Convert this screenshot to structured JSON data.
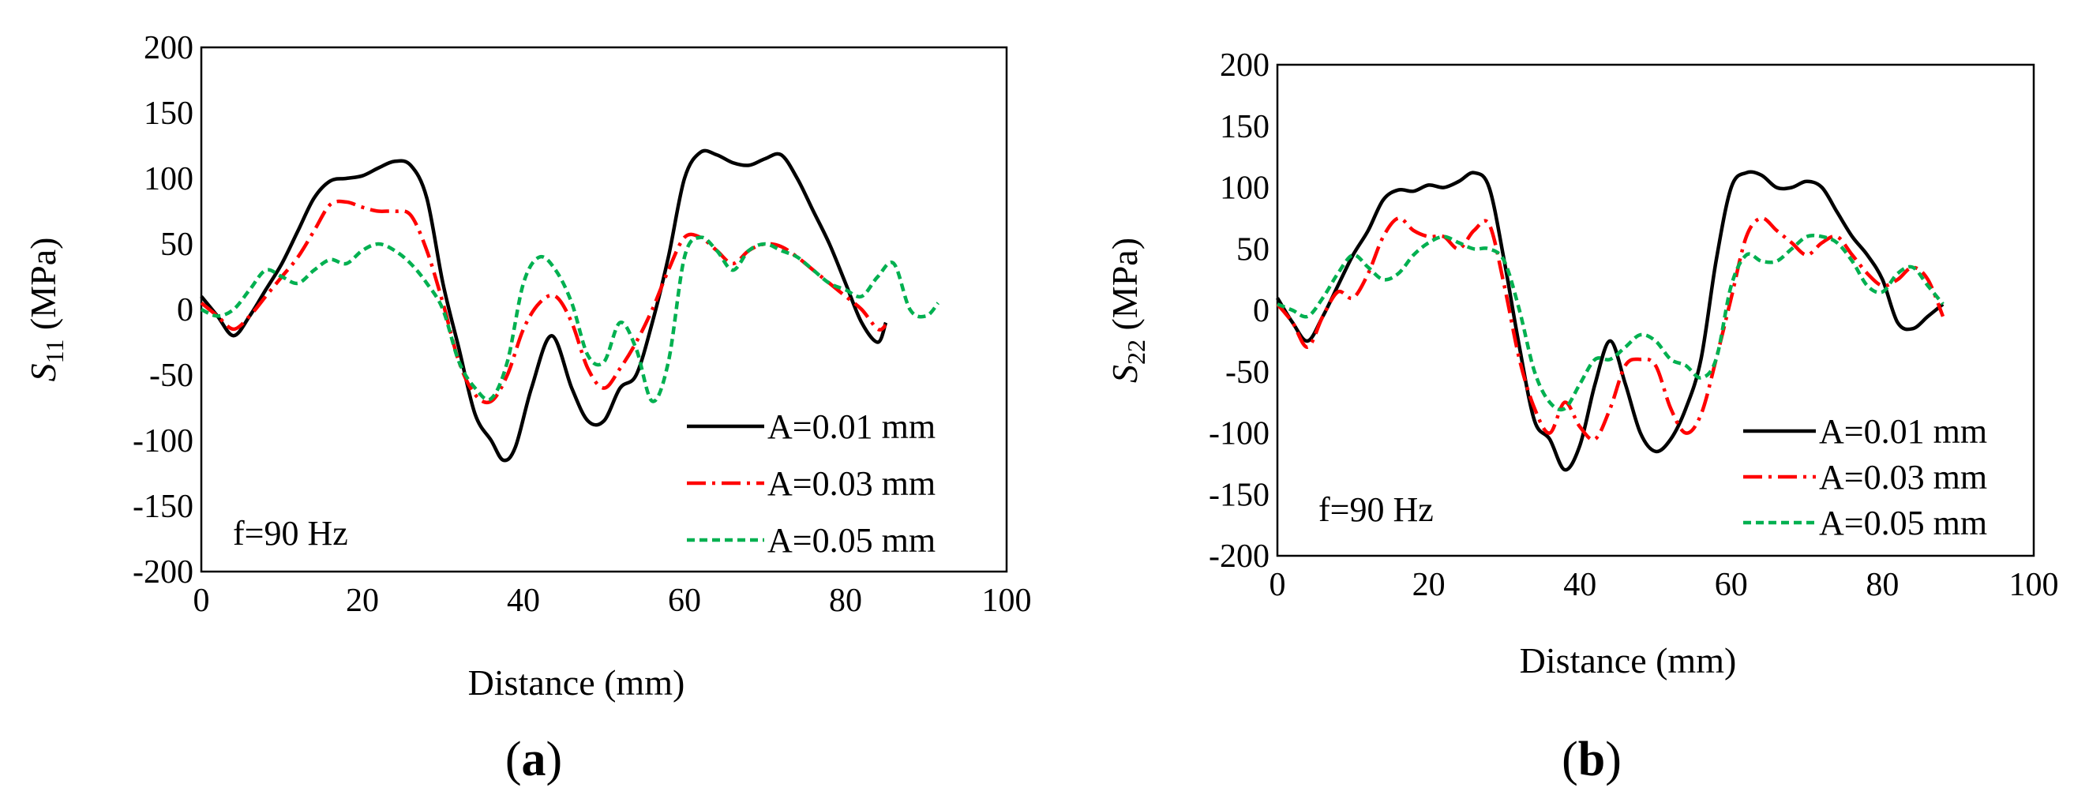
{
  "chart_data": [
    {
      "type": "line",
      "panel_label": {
        "open": "(",
        "letter": "a",
        "close": ")"
      },
      "title": "",
      "xlabel": "Distance (mm)",
      "ylabel": {
        "base": "S",
        "sub": "11",
        "unit": " (MPa)"
      },
      "xlim": [
        0,
        100
      ],
      "ylim": [
        -200,
        200
      ],
      "xticks": [
        0,
        20,
        40,
        60,
        80,
        100
      ],
      "xtick_labels": [
        "0",
        "20",
        "40",
        "60",
        "80",
        "100"
      ],
      "yticks": [
        200,
        150,
        100,
        50,
        0,
        -50,
        -100,
        -150,
        -200
      ],
      "ytick_labels": [
        "200",
        "150",
        "100",
        "50",
        "0",
        "-50",
        "-100",
        "-150",
        "-200"
      ],
      "grid": false,
      "annotation": "f=90 Hz",
      "legend_position": "bottom-right",
      "series": [
        {
          "name": "A=0.01 mm",
          "color": "#000000",
          "dash": "solid",
          "x": [
            0,
            2,
            4,
            6,
            8,
            10,
            12,
            14,
            16,
            18,
            20,
            22,
            24,
            26,
            28,
            30,
            32,
            34,
            36,
            37.5,
            39,
            41,
            43.5,
            46,
            48,
            50,
            52,
            54,
            56,
            58,
            60,
            62,
            64,
            66,
            68,
            70,
            72,
            74,
            76,
            78,
            80,
            82,
            84,
            85
          ],
          "y": [
            10,
            -5,
            -20,
            -5,
            15,
            35,
            60,
            85,
            98,
            100,
            102,
            108,
            113,
            110,
            85,
            20,
            -30,
            -80,
            -100,
            -115,
            -105,
            -60,
            -20,
            -60,
            -85,
            -85,
            -60,
            -50,
            -10,
            40,
            100,
            120,
            118,
            112,
            110,
            115,
            118,
            100,
            75,
            50,
            20,
            -10,
            -25,
            -10
          ]
        },
        {
          "name": "A=0.03 mm",
          "color": "#ff0000",
          "dash": "dashdot",
          "x": [
            0,
            2,
            4,
            6,
            8,
            10,
            12,
            14,
            16,
            18,
            20,
            22,
            24,
            26,
            28,
            30,
            32,
            34,
            36,
            38,
            40,
            42,
            44,
            46,
            48,
            50,
            52,
            54,
            56,
            58,
            60,
            62,
            64,
            66,
            68,
            70,
            72,
            74,
            76,
            78,
            80,
            82,
            84,
            85
          ],
          "y": [
            5,
            -5,
            -15,
            -5,
            10,
            25,
            40,
            60,
            80,
            82,
            78,
            75,
            75,
            72,
            45,
            5,
            -40,
            -65,
            -70,
            -50,
            -15,
            5,
            10,
            -10,
            -45,
            -60,
            -45,
            -25,
            0,
            30,
            55,
            55,
            45,
            35,
            45,
            50,
            48,
            40,
            30,
            20,
            10,
            0,
            -15,
            -12
          ]
        },
        {
          "name": "A=0.05 mm",
          "color": "#00b050",
          "dash": "dashed",
          "x": [
            0,
            2,
            4,
            6,
            8,
            10,
            12,
            14,
            16,
            18,
            20,
            22,
            24,
            26,
            28,
            30,
            32,
            34,
            36,
            38,
            40,
            42,
            44,
            46,
            48,
            50,
            52,
            54,
            56,
            58,
            60,
            62,
            64,
            66,
            68,
            70,
            72,
            74,
            76,
            78,
            80,
            82,
            84,
            86,
            88,
            90,
            91.5
          ],
          "y": [
            0,
            -5,
            0,
            15,
            30,
            25,
            20,
            30,
            38,
            35,
            45,
            50,
            45,
            35,
            20,
            0,
            -40,
            -60,
            -68,
            -40,
            20,
            40,
            30,
            5,
            -35,
            -40,
            -10,
            -30,
            -70,
            -40,
            40,
            55,
            45,
            30,
            45,
            50,
            45,
            40,
            30,
            20,
            15,
            10,
            25,
            35,
            0,
            -5,
            5
          ]
        }
      ]
    },
    {
      "type": "line",
      "panel_label": {
        "open": "(",
        "letter": "b",
        "close": ")"
      },
      "title": "",
      "xlabel": "Distance (mm)",
      "ylabel": {
        "base": "S",
        "sub": "22",
        "unit": " (MPa)"
      },
      "xlim": [
        0,
        100
      ],
      "ylim": [
        -200,
        200
      ],
      "xticks": [
        0,
        20,
        40,
        60,
        80,
        100
      ],
      "xtick_labels": [
        "0",
        "20",
        "40",
        "60",
        "80",
        "100"
      ],
      "yticks": [
        200,
        150,
        100,
        50,
        0,
        -50,
        -100,
        -150,
        -200
      ],
      "ytick_labels": [
        "200",
        "150",
        "100",
        "50",
        "0",
        "-50",
        "-100",
        "-150",
        "-200"
      ],
      "grid": false,
      "annotation": "f=90 Hz",
      "legend_position": "bottom-right",
      "series": [
        {
          "name": "A=0.01 mm",
          "color": "#000000",
          "dash": "solid",
          "x": [
            0,
            2,
            4,
            6,
            8,
            10,
            12,
            14,
            16,
            18,
            20,
            22,
            24,
            26,
            28,
            30,
            32,
            34,
            36,
            38,
            40,
            42,
            44,
            46,
            48,
            50,
            52,
            54,
            56,
            58,
            60,
            62,
            64,
            66,
            68,
            70,
            72,
            74,
            76,
            78,
            80,
            82,
            84,
            86,
            88
          ],
          "y": [
            10,
            -10,
            -25,
            -5,
            20,
            45,
            65,
            90,
            98,
            97,
            102,
            100,
            105,
            112,
            100,
            40,
            -30,
            -90,
            -105,
            -130,
            -110,
            -60,
            -25,
            -60,
            -100,
            -115,
            -105,
            -80,
            -40,
            40,
            100,
            112,
            110,
            100,
            100,
            105,
            100,
            80,
            60,
            45,
            25,
            -10,
            -15,
            -5,
            5
          ]
        },
        {
          "name": "A=0.03 mm",
          "color": "#ff0000",
          "dash": "dashdot",
          "x": [
            0,
            2,
            4,
            6,
            8,
            10,
            12,
            14,
            16,
            18,
            20,
            22,
            24,
            26,
            28,
            30,
            32,
            34,
            36,
            38,
            40,
            42,
            44,
            46,
            48,
            50,
            52,
            54,
            56,
            58,
            60,
            62,
            64,
            66,
            68,
            70,
            72,
            74,
            76,
            78,
            80,
            82,
            84,
            86,
            88
          ],
          "y": [
            5,
            -10,
            -30,
            -5,
            15,
            10,
            30,
            60,
            75,
            65,
            60,
            60,
            50,
            65,
            70,
            20,
            -40,
            -80,
            -100,
            -75,
            -95,
            -105,
            -80,
            -45,
            -40,
            -45,
            -80,
            -100,
            -85,
            -40,
            10,
            60,
            75,
            65,
            55,
            45,
            55,
            60,
            45,
            30,
            20,
            25,
            35,
            25,
            -5
          ]
        },
        {
          "name": "A=0.05 mm",
          "color": "#00b050",
          "dash": "dashed",
          "x": [
            0,
            2,
            4,
            6,
            8,
            10,
            12,
            14,
            16,
            18,
            20,
            22,
            24,
            26,
            28,
            30,
            32,
            34,
            36,
            38,
            40,
            42,
            44,
            46,
            48,
            50,
            52,
            54,
            56,
            58,
            60,
            62,
            64,
            66,
            68,
            70,
            72,
            74,
            76,
            78,
            80,
            82,
            84,
            86,
            88
          ],
          "y": [
            5,
            0,
            -5,
            10,
            30,
            45,
            35,
            25,
            30,
            45,
            55,
            60,
            55,
            50,
            50,
            40,
            0,
            -50,
            -75,
            -80,
            -60,
            -40,
            -40,
            -30,
            -20,
            -25,
            -40,
            -45,
            -55,
            -40,
            20,
            45,
            40,
            40,
            50,
            60,
            60,
            55,
            40,
            20,
            15,
            30,
            35,
            20,
            5
          ]
        }
      ]
    }
  ]
}
